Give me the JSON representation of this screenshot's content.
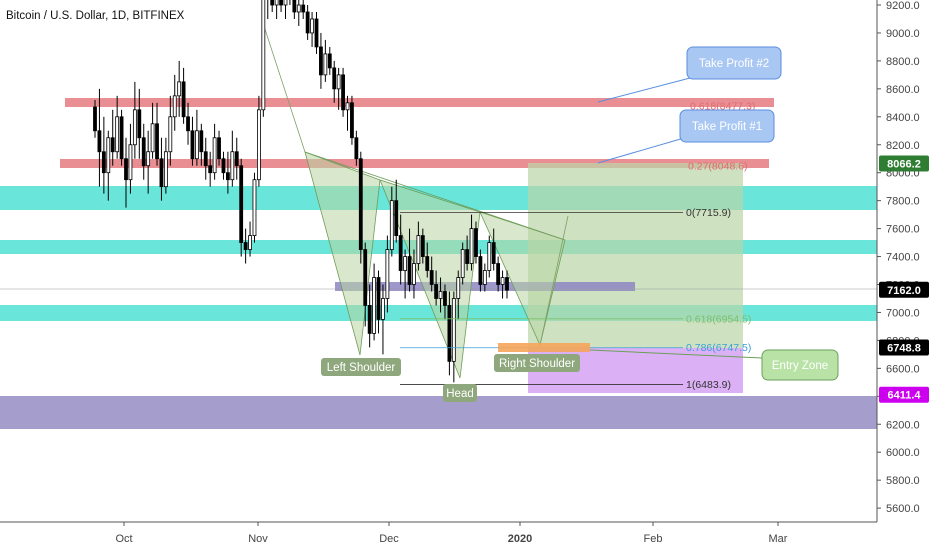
{
  "title": "Bitcoin / U.S. Dollar, 1D, BITFINEX",
  "colors": {
    "up": "#ffffff",
    "down": "#000000",
    "wick": "#000000",
    "teal": "#4fe0d3",
    "red": "#e26a6f",
    "purple": "#9b93c8",
    "pattern": "#b9d6a3",
    "box_green": "#b9d5a8",
    "box_purple": "#d39cf2",
    "callout": "#a9c7f3",
    "entry_callout": "#b9e2a6",
    "orange": "#f5a55a"
  },
  "chart_data": {
    "type": "candlestick",
    "y_ticks": [
      "9200.0",
      "9000.0",
      "8800.0",
      "8600.0",
      "8400.0",
      "8200.0",
      "8000.0",
      "7800.0",
      "7600.0",
      "7400.0",
      "7200.0",
      "7000.0",
      "6800.0",
      "6600.0",
      "6400.0",
      "6200.0",
      "6000.0",
      "5800.0",
      "5600.0"
    ],
    "x_ticks": [
      "Oct",
      "Nov",
      "Dec",
      "2020",
      "Feb",
      "Mar"
    ],
    "price_labels": [
      {
        "text": "8066.2",
        "value": 8066.2,
        "color": "#2e7d32"
      },
      {
        "text": "7162.0",
        "value": 7162.0,
        "color": "#000000"
      },
      {
        "text": "6748.8",
        "value": 6748.8,
        "color": "#000000"
      },
      {
        "text": "6411.4",
        "value": 6411.4,
        "color": "#cc00ee"
      }
    ],
    "fib_levels": [
      {
        "label": "0.618(8477.3)",
        "value": 8477.3,
        "color": "#e26a6f"
      },
      {
        "label": "0.27(8048.6)",
        "value": 8048.6,
        "color": "#e26a6f"
      },
      {
        "label": "0(7715.9)",
        "value": 7715.9,
        "color": "#333333"
      },
      {
        "label": "0.618(6954.5)",
        "value": 6954.5,
        "color": "#7dbf6a"
      },
      {
        "label": "0.786(6747.5)",
        "value": 6747.5,
        "color": "#3aa0d8"
      },
      {
        "label": "1(6483.9)",
        "value": 6483.9,
        "color": "#333333"
      }
    ],
    "annotations": {
      "take_profit_2": "Take Profit #2",
      "take_profit_1": "Take Profit #1",
      "entry_zone": "Entry Zone",
      "left_shoulder": "Left Shoulder",
      "head": "Head",
      "right_shoulder": "Right Shoulder"
    },
    "candles": [
      {
        "o": 8470,
        "h": 8520,
        "l": 8250,
        "c": 8300
      },
      {
        "o": 8300,
        "h": 8600,
        "l": 7900,
        "c": 8150
      },
      {
        "o": 8150,
        "h": 8400,
        "l": 7850,
        "c": 8000
      },
      {
        "o": 8000,
        "h": 8300,
        "l": 7800,
        "c": 8250
      },
      {
        "o": 8250,
        "h": 8450,
        "l": 8050,
        "c": 8150
      },
      {
        "o": 8150,
        "h": 8550,
        "l": 8100,
        "c": 8400
      },
      {
        "o": 8400,
        "h": 8450,
        "l": 8050,
        "c": 8100
      },
      {
        "o": 8100,
        "h": 8250,
        "l": 7750,
        "c": 7950
      },
      {
        "o": 7950,
        "h": 8350,
        "l": 7850,
        "c": 8200
      },
      {
        "o": 8200,
        "h": 8650,
        "l": 8100,
        "c": 8450
      },
      {
        "o": 8450,
        "h": 8600,
        "l": 8100,
        "c": 8250
      },
      {
        "o": 8250,
        "h": 8350,
        "l": 7950,
        "c": 8050
      },
      {
        "o": 8050,
        "h": 8300,
        "l": 7850,
        "c": 8150
      },
      {
        "o": 8150,
        "h": 8500,
        "l": 8100,
        "c": 8350
      },
      {
        "o": 8350,
        "h": 8500,
        "l": 8050,
        "c": 8100
      },
      {
        "o": 8100,
        "h": 8250,
        "l": 7800,
        "c": 7900
      },
      {
        "o": 7900,
        "h": 8250,
        "l": 7850,
        "c": 8150
      },
      {
        "o": 8150,
        "h": 8550,
        "l": 8050,
        "c": 8400
      },
      {
        "o": 8400,
        "h": 8700,
        "l": 8300,
        "c": 8550
      },
      {
        "o": 8550,
        "h": 8800,
        "l": 8400,
        "c": 8650
      },
      {
        "o": 8650,
        "h": 8750,
        "l": 8350,
        "c": 8400
      },
      {
        "o": 8400,
        "h": 8500,
        "l": 8200,
        "c": 8300
      },
      {
        "o": 8300,
        "h": 8400,
        "l": 8050,
        "c": 8100
      },
      {
        "o": 8100,
        "h": 8450,
        "l": 8050,
        "c": 8300
      },
      {
        "o": 8300,
        "h": 8350,
        "l": 8050,
        "c": 8150
      },
      {
        "o": 8150,
        "h": 8250,
        "l": 7950,
        "c": 8050
      },
      {
        "o": 8050,
        "h": 8150,
        "l": 7900,
        "c": 8000
      },
      {
        "o": 8000,
        "h": 8350,
        "l": 7950,
        "c": 8250
      },
      {
        "o": 8250,
        "h": 8300,
        "l": 8050,
        "c": 8100
      },
      {
        "o": 8100,
        "h": 8150,
        "l": 7950,
        "c": 8000
      },
      {
        "o": 8000,
        "h": 8150,
        "l": 7850,
        "c": 7950
      },
      {
        "o": 7950,
        "h": 8300,
        "l": 7900,
        "c": 8150
      },
      {
        "o": 8150,
        "h": 8250,
        "l": 7950,
        "c": 8050
      },
      {
        "o": 8050,
        "h": 8100,
        "l": 7400,
        "c": 7500
      },
      {
        "o": 7500,
        "h": 7600,
        "l": 7350,
        "c": 7450
      },
      {
        "o": 7450,
        "h": 7650,
        "l": 7400,
        "c": 7550
      },
      {
        "o": 7550,
        "h": 8000,
        "l": 7500,
        "c": 7950
      },
      {
        "o": 7950,
        "h": 8550,
        "l": 7900,
        "c": 8450
      },
      {
        "o": 8450,
        "h": 9300,
        "l": 8400,
        "c": 9250
      },
      {
        "o": 9250,
        "h": 9350,
        "l": 9100,
        "c": 9300
      },
      {
        "o": 9300,
        "h": 9350,
        "l": 9150,
        "c": 9200
      },
      {
        "o": 9200,
        "h": 9300,
        "l": 9100,
        "c": 9250
      },
      {
        "o": 9250,
        "h": 9350,
        "l": 9150,
        "c": 9200
      },
      {
        "o": 9200,
        "h": 9350,
        "l": 9100,
        "c": 9300
      },
      {
        "o": 9300,
        "h": 9350,
        "l": 9200,
        "c": 9250
      },
      {
        "o": 9250,
        "h": 9300,
        "l": 9100,
        "c": 9150
      },
      {
        "o": 9150,
        "h": 9250,
        "l": 9050,
        "c": 9200
      },
      {
        "o": 9200,
        "h": 9300,
        "l": 9100,
        "c": 9150
      },
      {
        "o": 9150,
        "h": 9200,
        "l": 8950,
        "c": 9000
      },
      {
        "o": 9000,
        "h": 9150,
        "l": 8900,
        "c": 9100
      },
      {
        "o": 9100,
        "h": 9150,
        "l": 8850,
        "c": 8900
      },
      {
        "o": 8900,
        "h": 9000,
        "l": 8600,
        "c": 8700
      },
      {
        "o": 8700,
        "h": 8950,
        "l": 8650,
        "c": 8850
      },
      {
        "o": 8850,
        "h": 8900,
        "l": 8700,
        "c": 8750
      },
      {
        "o": 8750,
        "h": 8800,
        "l": 8500,
        "c": 8600
      },
      {
        "o": 8600,
        "h": 8750,
        "l": 8450,
        "c": 8700
      },
      {
        "o": 8700,
        "h": 8750,
        "l": 8400,
        "c": 8450
      },
      {
        "o": 8450,
        "h": 8550,
        "l": 8300,
        "c": 8500
      },
      {
        "o": 8500,
        "h": 8550,
        "l": 8200,
        "c": 8250
      },
      {
        "o": 8250,
        "h": 8300,
        "l": 8050,
        "c": 8100
      },
      {
        "o": 8100,
        "h": 8150,
        "l": 7350,
        "c": 7450
      },
      {
        "o": 7450,
        "h": 7500,
        "l": 6900,
        "c": 7050
      },
      {
        "o": 7050,
        "h": 7200,
        "l": 6750,
        "c": 6850
      },
      {
        "o": 6850,
        "h": 7350,
        "l": 6800,
        "c": 7250
      },
      {
        "o": 7250,
        "h": 7300,
        "l": 6850,
        "c": 6950
      },
      {
        "o": 6950,
        "h": 7200,
        "l": 6700,
        "c": 7100
      },
      {
        "o": 7100,
        "h": 7550,
        "l": 7000,
        "c": 7450
      },
      {
        "o": 7450,
        "h": 7900,
        "l": 7400,
        "c": 7800
      },
      {
        "o": 7800,
        "h": 7950,
        "l": 7500,
        "c": 7550
      },
      {
        "o": 7550,
        "h": 7700,
        "l": 7200,
        "c": 7300
      },
      {
        "o": 7300,
        "h": 7450,
        "l": 7100,
        "c": 7400
      },
      {
        "o": 7400,
        "h": 7600,
        "l": 7150,
        "c": 7200
      },
      {
        "o": 7200,
        "h": 7450,
        "l": 7100,
        "c": 7350
      },
      {
        "o": 7350,
        "h": 7650,
        "l": 7300,
        "c": 7550
      },
      {
        "o": 7550,
        "h": 7600,
        "l": 7350,
        "c": 7400
      },
      {
        "o": 7400,
        "h": 7500,
        "l": 7250,
        "c": 7300
      },
      {
        "o": 7300,
        "h": 7400,
        "l": 7150,
        "c": 7200
      },
      {
        "o": 7200,
        "h": 7300,
        "l": 7050,
        "c": 7100
      },
      {
        "o": 7100,
        "h": 7250,
        "l": 7000,
        "c": 7150
      },
      {
        "o": 7150,
        "h": 7200,
        "l": 6950,
        "c": 7050
      },
      {
        "o": 7050,
        "h": 7150,
        "l": 6550,
        "c": 6650
      },
      {
        "o": 6650,
        "h": 7150,
        "l": 6500,
        "c": 7100
      },
      {
        "o": 7100,
        "h": 7300,
        "l": 6950,
        "c": 7250
      },
      {
        "o": 7250,
        "h": 7500,
        "l": 7200,
        "c": 7450
      },
      {
        "o": 7450,
        "h": 7550,
        "l": 7300,
        "c": 7350
      },
      {
        "o": 7350,
        "h": 7700,
        "l": 7300,
        "c": 7600
      },
      {
        "o": 7600,
        "h": 7650,
        "l": 7350,
        "c": 7400
      },
      {
        "o": 7400,
        "h": 7450,
        "l": 7150,
        "c": 7200
      },
      {
        "o": 7200,
        "h": 7350,
        "l": 7150,
        "c": 7300
      },
      {
        "o": 7300,
        "h": 7550,
        "l": 7250,
        "c": 7500
      },
      {
        "o": 7500,
        "h": 7600,
        "l": 7300,
        "c": 7350
      },
      {
        "o": 7350,
        "h": 7400,
        "l": 7150,
        "c": 7200
      },
      {
        "o": 7200,
        "h": 7300,
        "l": 7100,
        "c": 7250
      },
      {
        "o": 7250,
        "h": 7300,
        "l": 7100,
        "c": 7160
      }
    ]
  }
}
